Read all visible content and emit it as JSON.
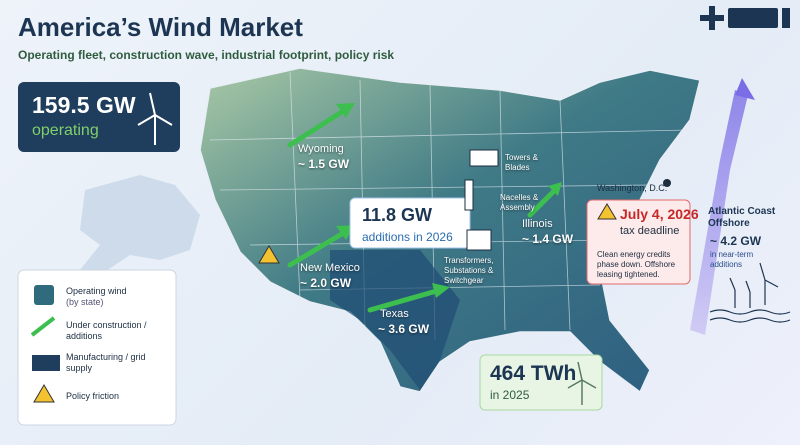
{
  "header": {
    "title": "America’s Wind Market",
    "subtitle": "Operating fleet, construction wave, industrial footprint, policy risk"
  },
  "stat_operating": {
    "value": "159.5 GW",
    "label": "operating"
  },
  "states": [
    {
      "name": "Wyoming",
      "value": "~ 1.5 GW"
    },
    {
      "name": "New Mexico",
      "value": "~ 2.0 GW"
    },
    {
      "name": "Texas",
      "value": "~ 3.6 GW"
    },
    {
      "name": "Illinois",
      "value": "~ 1.4 GW"
    }
  ],
  "additions": {
    "value": "11.8 GW",
    "label": "additions in 2026"
  },
  "manufacturing": [
    "Towers & Blades",
    "Nacelles & Assembly",
    "Transformers, Substations & Switchgear"
  ],
  "capital": "Washington, D.C.",
  "policy": {
    "date": "July 4, 2026",
    "label": "tax deadline",
    "note": "Clean energy credits phase down. Offshore leasing tightened."
  },
  "offshore": {
    "title": "Atlantic Coast Offshore",
    "value": "~ 4.2 GW",
    "label": "in near-term additions"
  },
  "generation": {
    "value": "464 TWh",
    "label": "in 2025"
  },
  "legend": [
    {
      "label": "Operating wind",
      "sub": "(by state)"
    },
    {
      "label": "Under construction / additions"
    },
    {
      "label": "Manufacturing / grid supply"
    },
    {
      "label": "Policy friction"
    }
  ]
}
